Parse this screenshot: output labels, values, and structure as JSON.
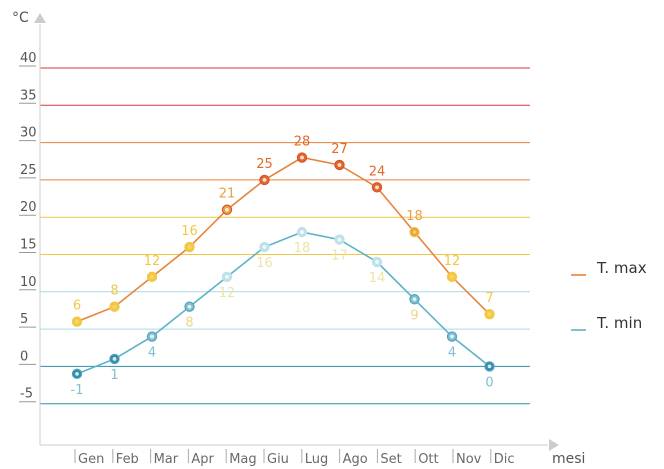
{
  "chart_data": {
    "type": "line",
    "ylabel": "°C",
    "xlabel": "mesi",
    "categories": [
      "Gen",
      "Feb",
      "Mar",
      "Apr",
      "Mag",
      "Giu",
      "Lug",
      "Ago",
      "Set",
      "Ott",
      "Nov",
      "Dic"
    ],
    "yticks": [
      40,
      35,
      30,
      25,
      20,
      15,
      10,
      5,
      0,
      -5
    ],
    "ylim": [
      -9.5,
      45
    ],
    "grid": true,
    "legend_position": "right",
    "series": [
      {
        "name": "T. max",
        "color": "#e8833a",
        "values": [
          6,
          8,
          12,
          16,
          21,
          25,
          28,
          27,
          24,
          18,
          12,
          7
        ]
      },
      {
        "name": "T. min",
        "color": "#5bb3c8",
        "values": [
          -1,
          1,
          4,
          8,
          12,
          16,
          18,
          17,
          14,
          9,
          4,
          0
        ]
      }
    ]
  },
  "colors": {
    "band_hot": "#d9383a",
    "band_warm": "#e8833a",
    "band_mild": "#f2c744",
    "band_cool": "#a8dce8",
    "band_cold": "#2e8fa8",
    "axis": "#cccccc"
  }
}
